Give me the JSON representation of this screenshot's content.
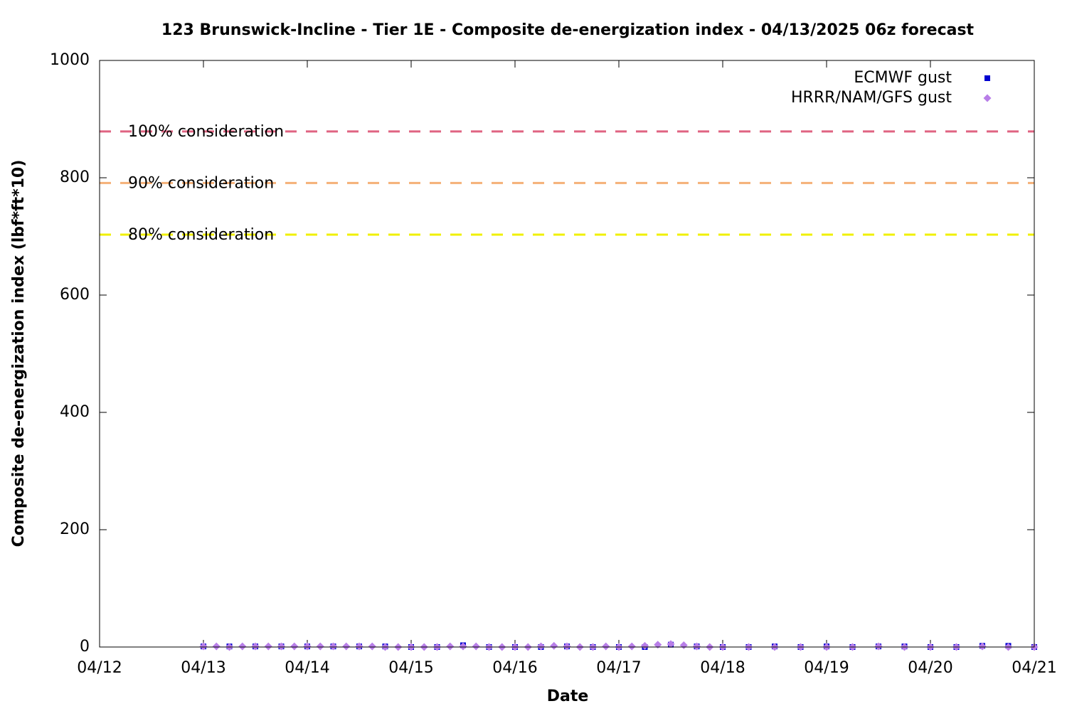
{
  "chart_data": {
    "type": "scatter",
    "title": "123 Brunswick-Incline - Tier 1E - Composite de-energization index - 04/13/2025 06z forecast",
    "xlabel": "Date",
    "ylabel": "Composite de-energization index (lbf*ft*10)",
    "xlim": [
      12,
      21
    ],
    "ylim": [
      0,
      1000
    ],
    "xticks": [
      {
        "value": 12,
        "label": "04/12"
      },
      {
        "value": 13,
        "label": "04/13"
      },
      {
        "value": 14,
        "label": "04/14"
      },
      {
        "value": 15,
        "label": "04/15"
      },
      {
        "value": 16,
        "label": "04/16"
      },
      {
        "value": 17,
        "label": "04/17"
      },
      {
        "value": 18,
        "label": "04/18"
      },
      {
        "value": 19,
        "label": "04/19"
      },
      {
        "value": 20,
        "label": "04/20"
      },
      {
        "value": 21,
        "label": "04/21"
      }
    ],
    "yticks": [
      0,
      200,
      400,
      600,
      800,
      1000
    ],
    "legend": "top-right",
    "thresholds": [
      {
        "name": "100% consideration",
        "value": 879,
        "color": "#e06482"
      },
      {
        "name": "90% consideration",
        "value": 791,
        "color": "#f5b078"
      },
      {
        "name": "80% consideration",
        "value": 703,
        "color": "#f0f000"
      }
    ],
    "series": [
      {
        "name": "ECMWF gust",
        "color": "#0000d0",
        "marker": "square",
        "x": [
          13,
          13.25,
          13.5,
          13.75,
          14,
          14.25,
          14.5,
          14.75,
          15,
          15.25,
          15.5,
          15.75,
          16,
          16.25,
          16.5,
          16.75,
          17,
          17.25,
          17.5,
          17.75,
          18,
          18.25,
          18.5,
          18.75,
          19,
          19.25,
          19.5,
          19.75,
          20,
          20.25,
          20.5,
          20.75,
          21
        ],
        "values": [
          1,
          1,
          1,
          1,
          1,
          1,
          1,
          1,
          0,
          0,
          3,
          0,
          0,
          0,
          1,
          0,
          0,
          0,
          4,
          1,
          0,
          0,
          1,
          0,
          1,
          0,
          1,
          1,
          0,
          0,
          2,
          2,
          0
        ]
      },
      {
        "name": "HRRR/NAM/GFS gust",
        "color": "#b87ee8",
        "marker": "diamond",
        "x": [
          13,
          13.125,
          13.25,
          13.375,
          13.5,
          13.625,
          13.75,
          13.875,
          14,
          14.125,
          14.25,
          14.375,
          14.5,
          14.625,
          14.75,
          14.875,
          15,
          15.125,
          15.25,
          15.375,
          15.5,
          15.625,
          15.75,
          15.875,
          16,
          16.125,
          16.25,
          16.375,
          16.5,
          16.625,
          16.75,
          16.875,
          17,
          17.125,
          17.25,
          17.375,
          17.5,
          17.625,
          17.75,
          17.875,
          18,
          18.25,
          18.5,
          18.75,
          19,
          19.25,
          19.5,
          19.75,
          20,
          20.25,
          20.5,
          20.75,
          21
        ],
        "values": [
          1,
          1,
          0,
          1,
          1,
          1,
          1,
          1,
          1,
          1,
          1,
          1,
          1,
          1,
          0,
          0,
          0,
          0,
          0,
          1,
          1,
          1,
          0,
          0,
          0,
          0,
          1,
          2,
          1,
          0,
          0,
          1,
          0,
          1,
          2,
          4,
          5,
          3,
          1,
          0,
          0,
          0,
          0,
          0,
          0,
          0,
          1,
          0,
          0,
          0,
          1,
          0,
          0
        ]
      }
    ]
  }
}
